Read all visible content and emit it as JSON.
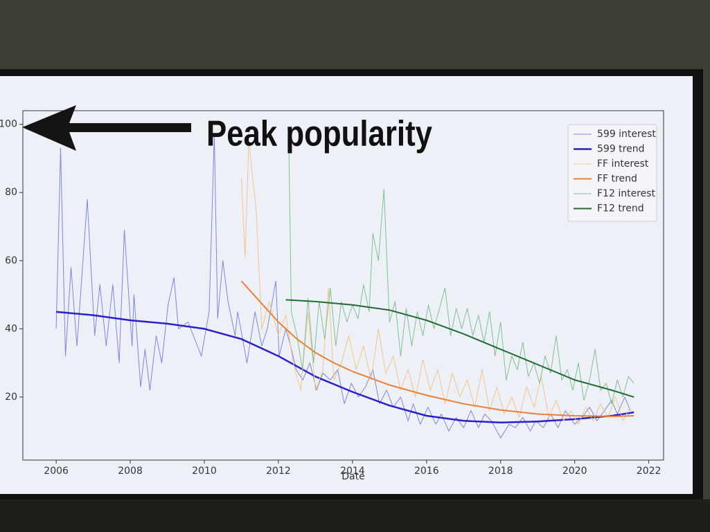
{
  "chart_data": {
    "type": "line",
    "xlabel": "Date",
    "annotation": "Peak popularity",
    "xlim": [
      2005.1,
      2022.4
    ],
    "ylim": [
      1.5,
      104
    ],
    "xticks": [
      2006,
      2008,
      2010,
      2012,
      2014,
      2016,
      2018,
      2020,
      2022
    ],
    "yticks": [
      20,
      40,
      60,
      80,
      100
    ],
    "legend": "upper right",
    "series": [
      {
        "name": "599 interest",
        "color": "#7d86d8",
        "linewidth": 1,
        "x": [
          2006.0,
          2006.12,
          2006.25,
          2006.4,
          2006.56,
          2006.84,
          2007.04,
          2007.18,
          2007.35,
          2007.53,
          2007.7,
          2007.84,
          2008.05,
          2008.1,
          2008.28,
          2008.4,
          2008.53,
          2008.7,
          2008.85,
          2009.02,
          2009.18,
          2009.3,
          2009.56,
          2009.74,
          2009.92,
          2010.13,
          2010.27,
          2010.36,
          2010.5,
          2010.64,
          2010.83,
          2010.9,
          2011.15,
          2011.37,
          2011.55,
          2011.7,
          2011.93,
          2012.02,
          2012.2,
          2012.33,
          2012.48,
          2012.66,
          2012.85,
          2013.03,
          2013.2,
          2013.4,
          2013.6,
          2013.78,
          2013.97,
          2014.16,
          2014.35,
          2014.55,
          2014.73,
          2014.92,
          2015.1,
          2015.3,
          2015.5,
          2015.64,
          2015.83,
          2016.04,
          2016.25,
          2016.4,
          2016.6,
          2016.8,
          2017.0,
          2017.2,
          2017.4,
          2017.57,
          2017.75,
          2018.0,
          2018.23,
          2018.4,
          2018.6,
          2018.8,
          2018.95,
          2019.15,
          2019.35,
          2019.55,
          2019.75,
          2020.0,
          2020.2,
          2020.4,
          2020.6,
          2020.8,
          2021.0,
          2021.15,
          2021.35,
          2021.5
        ],
        "values": [
          40,
          93,
          32,
          58,
          35,
          78,
          38,
          53,
          35,
          53,
          30,
          69,
          35,
          50,
          23,
          34,
          22,
          38,
          30,
          47,
          55,
          40,
          42,
          37,
          32,
          45,
          97,
          43,
          60,
          48,
          38,
          45,
          30,
          45,
          35,
          40,
          54,
          32,
          40,
          35,
          28,
          25,
          30,
          22,
          27,
          25,
          28,
          18,
          24,
          20,
          23,
          28,
          18,
          22,
          17,
          20,
          13,
          18,
          12,
          17,
          12,
          15,
          10,
          14,
          11,
          16,
          11,
          15,
          13,
          8,
          12,
          11,
          14,
          10,
          13,
          11,
          15,
          11,
          16,
          12,
          14,
          17,
          13,
          16,
          19,
          15,
          20,
          16
        ]
      },
      {
        "name": "599 trend",
        "color": "#2a1fc8",
        "linewidth": 2.5,
        "x": [
          2006,
          2007,
          2008,
          2009,
          2010,
          2011,
          2012,
          2013,
          2014,
          2015,
          2016,
          2017,
          2018,
          2019,
          2020,
          2021,
          2021.6
        ],
        "values": [
          45,
          44,
          42.5,
          41.5,
          40,
          37,
          32,
          26,
          21.5,
          17.5,
          14.5,
          13,
          12.5,
          12.8,
          13.5,
          14.5,
          15.5
        ]
      },
      {
        "name": "FF interest",
        "color": "#efc48c",
        "linewidth": 1,
        "x": [
          2011.0,
          2011.1,
          2011.2,
          2011.4,
          2011.55,
          2011.75,
          2012.0,
          2012.2,
          2012.4,
          2012.6,
          2012.8,
          2013.0,
          2013.2,
          2013.35,
          2013.5,
          2013.7,
          2013.9,
          2014.1,
          2014.3,
          2014.5,
          2014.7,
          2014.9,
          2015.1,
          2015.3,
          2015.5,
          2015.7,
          2015.9,
          2016.1,
          2016.3,
          2016.5,
          2016.7,
          2016.9,
          2017.1,
          2017.3,
          2017.5,
          2017.7,
          2017.9,
          2018.1,
          2018.3,
          2018.5,
          2018.7,
          2018.9,
          2019.1,
          2019.3,
          2019.5,
          2019.7,
          2019.9,
          2020.1,
          2020.3,
          2020.5,
          2020.7,
          2020.9,
          2021.1,
          2021.3,
          2021.5
        ],
        "values": [
          84,
          61,
          95,
          75,
          40,
          48,
          38,
          44,
          30,
          22,
          45,
          22,
          28,
          52,
          25,
          30,
          38,
          28,
          35,
          25,
          40,
          27,
          32,
          22,
          28,
          20,
          31,
          22,
          28,
          18,
          27,
          20,
          25,
          17,
          28,
          16,
          23,
          15,
          20,
          14,
          23,
          17,
          26,
          14,
          19,
          13,
          16,
          12,
          17,
          13,
          18,
          14,
          20,
          13,
          17
        ]
      },
      {
        "name": "FF trend",
        "color": "#e8803a",
        "linewidth": 2,
        "x": [
          2011.0,
          2011.5,
          2012,
          2012.5,
          2013,
          2013.5,
          2014,
          2015,
          2016,
          2017,
          2018,
          2019,
          2020,
          2021,
          2021.6
        ],
        "values": [
          54,
          48,
          42,
          37,
          33,
          30,
          27.5,
          23.5,
          20.5,
          18,
          16.2,
          15,
          14.5,
          14.3,
          14.5
        ]
      },
      {
        "name": "F12 interest",
        "color": "#80bf90",
        "linewidth": 1,
        "x": [
          2012.28,
          2012.35,
          2012.5,
          2012.65,
          2012.8,
          2012.95,
          2013.1,
          2013.25,
          2013.4,
          2013.55,
          2013.7,
          2013.85,
          2014.0,
          2014.15,
          2014.3,
          2014.45,
          2014.55,
          2014.7,
          2014.85,
          2015.0,
          2015.15,
          2015.3,
          2015.45,
          2015.6,
          2015.75,
          2015.9,
          2016.05,
          2016.2,
          2016.35,
          2016.5,
          2016.65,
          2016.8,
          2016.95,
          2017.1,
          2017.25,
          2017.4,
          2017.55,
          2017.7,
          2017.85,
          2018.0,
          2018.15,
          2018.3,
          2018.45,
          2018.6,
          2018.75,
          2018.9,
          2019.05,
          2019.2,
          2019.35,
          2019.5,
          2019.65,
          2019.8,
          2019.95,
          2020.1,
          2020.25,
          2020.4,
          2020.55,
          2020.7,
          2020.85,
          2021.0,
          2021.15,
          2021.3,
          2021.45,
          2021.6
        ],
        "values": [
          95,
          45,
          38,
          28,
          49,
          30,
          48,
          37,
          52,
          35,
          48,
          42,
          47,
          43,
          53,
          45,
          68,
          60,
          81,
          42,
          48,
          32,
          46,
          35,
          45,
          38,
          47,
          40,
          46,
          52,
          38,
          46,
          40,
          46,
          38,
          44,
          36,
          45,
          32,
          42,
          25,
          32,
          28,
          36,
          26,
          30,
          24,
          32,
          27,
          38,
          25,
          28,
          22,
          30,
          19,
          25,
          34,
          22,
          24,
          18,
          25,
          20,
          26,
          24
        ]
      },
      {
        "name": "F12 trend",
        "color": "#1f6b32",
        "linewidth": 2,
        "x": [
          2012.2,
          2013,
          2014,
          2015,
          2016,
          2017,
          2018,
          2019,
          2020,
          2021,
          2021.6
        ],
        "values": [
          48.5,
          48,
          47,
          45.5,
          42.5,
          38.5,
          34,
          29.5,
          25,
          22,
          20
        ]
      }
    ]
  }
}
